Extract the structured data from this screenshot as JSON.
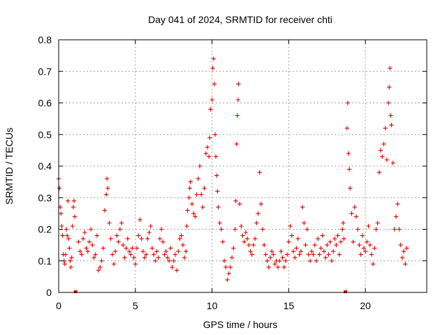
{
  "chart_data": {
    "type": "scatter",
    "title": "Day 041 of 2024, SRMTID for receiver chti",
    "xlabel": "GPS time / hours",
    "ylabel": "SRMTID / TECUs",
    "xlim": [
      0,
      24
    ],
    "ylim": [
      0,
      0.8
    ],
    "xticks": [
      0,
      5,
      10,
      15,
      20
    ],
    "xtick_labels": [
      "0",
      "5",
      "10",
      "15",
      "20"
    ],
    "yticks": [
      0,
      0.1,
      0.2,
      0.3,
      0.4,
      0.5,
      0.6,
      0.7,
      0.8
    ],
    "ytick_labels": [
      "0",
      "0.1",
      "0.2",
      "0.3",
      "0.4",
      "0.5",
      "0.6",
      "0.7",
      "0.8"
    ],
    "grid": true,
    "marker": "plus",
    "color": "#dd0000",
    "gap_markers": [
      1.1,
      18.7
    ],
    "series": [
      {
        "name": "SRMTID",
        "points": [
          [
            0.0,
            0.36
          ],
          [
            0.05,
            0.33
          ],
          [
            0.1,
            0.27
          ],
          [
            0.15,
            0.25
          ],
          [
            0.2,
            0.21
          ],
          [
            0.25,
            0.18
          ],
          [
            0.3,
            0.12
          ],
          [
            0.35,
            0.1
          ],
          [
            0.4,
            0.09
          ],
          [
            0.45,
            0.12
          ],
          [
            0.5,
            0.2
          ],
          [
            0.55,
            0.18
          ],
          [
            0.6,
            0.29
          ],
          [
            0.65,
            0.17
          ],
          [
            0.7,
            0.14
          ],
          [
            0.75,
            0.1
          ],
          [
            0.8,
            0.08
          ],
          [
            0.85,
            0.11
          ],
          [
            0.9,
            0.21
          ],
          [
            0.95,
            0.27
          ],
          [
            1.0,
            0.29
          ],
          [
            1.05,
            0.24
          ],
          [
            1.3,
            0.16
          ],
          [
            1.4,
            0.13
          ],
          [
            1.5,
            0.12
          ],
          [
            1.6,
            0.17
          ],
          [
            1.7,
            0.19
          ],
          [
            1.8,
            0.14
          ],
          [
            1.9,
            0.13
          ],
          [
            2.0,
            0.16
          ],
          [
            2.1,
            0.2
          ],
          [
            2.2,
            0.15
          ],
          [
            2.3,
            0.11
          ],
          [
            2.4,
            0.12
          ],
          [
            2.5,
            0.18
          ],
          [
            2.6,
            0.07
          ],
          [
            2.7,
            0.08
          ],
          [
            2.8,
            0.1
          ],
          [
            2.9,
            0.14
          ],
          [
            3.0,
            0.26
          ],
          [
            3.1,
            0.31
          ],
          [
            3.15,
            0.36
          ],
          [
            3.2,
            0.33
          ],
          [
            3.3,
            0.22
          ],
          [
            3.4,
            0.17
          ],
          [
            3.5,
            0.12
          ],
          [
            3.6,
            0.09
          ],
          [
            3.7,
            0.13
          ],
          [
            3.8,
            0.18
          ],
          [
            3.9,
            0.16
          ],
          [
            4.0,
            0.2
          ],
          [
            4.1,
            0.22
          ],
          [
            4.2,
            0.15
          ],
          [
            4.3,
            0.11
          ],
          [
            4.4,
            0.14
          ],
          [
            4.5,
            0.17
          ],
          [
            4.6,
            0.13
          ],
          [
            4.7,
            0.12
          ],
          [
            4.8,
            0.14
          ],
          [
            4.9,
            0.11
          ],
          [
            5.0,
            0.09
          ],
          [
            5.1,
            0.14
          ],
          [
            5.2,
            0.18
          ],
          [
            5.3,
            0.23
          ],
          [
            5.4,
            0.17
          ],
          [
            5.5,
            0.13
          ],
          [
            5.6,
            0.11
          ],
          [
            5.7,
            0.12
          ],
          [
            5.8,
            0.17
          ],
          [
            5.9,
            0.19
          ],
          [
            6.0,
            0.21
          ],
          [
            6.1,
            0.14
          ],
          [
            6.2,
            0.12
          ],
          [
            6.3,
            0.1
          ],
          [
            6.4,
            0.13
          ],
          [
            6.5,
            0.11
          ],
          [
            6.6,
            0.17
          ],
          [
            6.7,
            0.2
          ],
          [
            6.8,
            0.16
          ],
          [
            6.9,
            0.12
          ],
          [
            7.0,
            0.13
          ],
          [
            7.1,
            0.11
          ],
          [
            7.2,
            0.1
          ],
          [
            7.3,
            0.14
          ],
          [
            7.4,
            0.08
          ],
          [
            7.5,
            0.1
          ],
          [
            7.6,
            0.12
          ],
          [
            7.7,
            0.07
          ],
          [
            7.8,
            0.13
          ],
          [
            7.9,
            0.17
          ],
          [
            8.0,
            0.18
          ],
          [
            8.1,
            0.15
          ],
          [
            8.2,
            0.11
          ],
          [
            8.3,
            0.13
          ],
          [
            8.35,
            0.21
          ],
          [
            8.4,
            0.26
          ],
          [
            8.5,
            0.3
          ],
          [
            8.55,
            0.33
          ],
          [
            8.6,
            0.35
          ],
          [
            8.7,
            0.28
          ],
          [
            8.8,
            0.25
          ],
          [
            8.9,
            0.24
          ],
          [
            9.0,
            0.31
          ],
          [
            9.1,
            0.36
          ],
          [
            9.2,
            0.4
          ],
          [
            9.3,
            0.31
          ],
          [
            9.4,
            0.27
          ],
          [
            9.5,
            0.33
          ],
          [
            9.6,
            0.44
          ],
          [
            9.7,
            0.46
          ],
          [
            9.8,
            0.43
          ],
          [
            9.85,
            0.49
          ],
          [
            9.9,
            0.58
          ],
          [
            10.0,
            0.61
          ],
          [
            10.05,
            0.71
          ],
          [
            10.1,
            0.74
          ],
          [
            10.15,
            0.66
          ],
          [
            10.2,
            0.5
          ],
          [
            10.25,
            0.43
          ],
          [
            10.3,
            0.37
          ],
          [
            10.35,
            0.32
          ],
          [
            10.4,
            0.27
          ],
          [
            10.5,
            0.22
          ],
          [
            10.6,
            0.2
          ],
          [
            10.7,
            0.16
          ],
          [
            10.8,
            0.1
          ],
          [
            10.9,
            0.08
          ],
          [
            11.0,
            0.04
          ],
          [
            11.1,
            0.06
          ],
          [
            11.2,
            0.08
          ],
          [
            11.3,
            0.11
          ],
          [
            11.4,
            0.14
          ],
          [
            11.5,
            0.2
          ],
          [
            11.55,
            0.29
          ],
          [
            11.6,
            0.47
          ],
          [
            11.65,
            0.56
          ],
          [
            11.7,
            0.61
          ],
          [
            11.72,
            0.66
          ],
          [
            11.8,
            0.28
          ],
          [
            11.9,
            0.21
          ],
          [
            12.0,
            0.18
          ],
          [
            12.1,
            0.16
          ],
          [
            12.2,
            0.19
          ],
          [
            12.3,
            0.17
          ],
          [
            12.4,
            0.15
          ],
          [
            12.5,
            0.13
          ],
          [
            12.6,
            0.12
          ],
          [
            12.7,
            0.15
          ],
          [
            12.8,
            0.17
          ],
          [
            12.9,
            0.22
          ],
          [
            13.0,
            0.25
          ],
          [
            13.1,
            0.38
          ],
          [
            13.2,
            0.28
          ],
          [
            13.3,
            0.2
          ],
          [
            13.4,
            0.15
          ],
          [
            13.5,
            0.12
          ],
          [
            13.6,
            0.1
          ],
          [
            13.7,
            0.08
          ],
          [
            13.8,
            0.11
          ],
          [
            13.9,
            0.13
          ],
          [
            14.0,
            0.12
          ],
          [
            14.1,
            0.09
          ],
          [
            14.2,
            0.1
          ],
          [
            14.3,
            0.08
          ],
          [
            14.4,
            0.1
          ],
          [
            14.5,
            0.13
          ],
          [
            14.6,
            0.11
          ],
          [
            14.7,
            0.08
          ],
          [
            14.8,
            0.1
          ],
          [
            14.9,
            0.12
          ],
          [
            15.0,
            0.16
          ],
          [
            15.1,
            0.21
          ],
          [
            15.2,
            0.18
          ],
          [
            15.3,
            0.13
          ],
          [
            15.4,
            0.11
          ],
          [
            15.5,
            0.14
          ],
          [
            15.6,
            0.17
          ],
          [
            15.7,
            0.12
          ],
          [
            15.8,
            0.13
          ],
          [
            15.9,
            0.27
          ],
          [
            16.0,
            0.22
          ],
          [
            16.1,
            0.15
          ],
          [
            16.2,
            0.2
          ],
          [
            16.3,
            0.12
          ],
          [
            16.4,
            0.1
          ],
          [
            16.5,
            0.13
          ],
          [
            16.6,
            0.12
          ],
          [
            16.7,
            0.15
          ],
          [
            16.8,
            0.1
          ],
          [
            16.9,
            0.17
          ],
          [
            17.0,
            0.12
          ],
          [
            17.1,
            0.14
          ],
          [
            17.2,
            0.18
          ],
          [
            17.3,
            0.13
          ],
          [
            17.4,
            0.11
          ],
          [
            17.5,
            0.15
          ],
          [
            17.6,
            0.12
          ],
          [
            17.7,
            0.16
          ],
          [
            17.8,
            0.1
          ],
          [
            17.9,
            0.13
          ],
          [
            18.0,
            0.17
          ],
          [
            18.1,
            0.15
          ],
          [
            18.2,
            0.18
          ],
          [
            18.3,
            0.12
          ],
          [
            18.4,
            0.16
          ],
          [
            18.5,
            0.2
          ],
          [
            18.55,
            0.22
          ],
          [
            18.6,
            0.17
          ],
          [
            18.8,
            0.52
          ],
          [
            18.85,
            0.6
          ],
          [
            18.9,
            0.44
          ],
          [
            18.95,
            0.39
          ],
          [
            19.0,
            0.33
          ],
          [
            19.1,
            0.25
          ],
          [
            19.2,
            0.16
          ],
          [
            19.3,
            0.27
          ],
          [
            19.4,
            0.24
          ],
          [
            19.5,
            0.2
          ],
          [
            19.6,
            0.15
          ],
          [
            19.7,
            0.12
          ],
          [
            19.8,
            0.18
          ],
          [
            19.9,
            0.14
          ],
          [
            20.0,
            0.13
          ],
          [
            20.1,
            0.16
          ],
          [
            20.2,
            0.21
          ],
          [
            20.3,
            0.15
          ],
          [
            20.4,
            0.12
          ],
          [
            20.5,
            0.09
          ],
          [
            20.6,
            0.14
          ],
          [
            20.7,
            0.2
          ],
          [
            20.8,
            0.22
          ],
          [
            20.9,
            0.38
          ],
          [
            21.0,
            0.45
          ],
          [
            21.1,
            0.43
          ],
          [
            21.2,
            0.47
          ],
          [
            21.3,
            0.52
          ],
          [
            21.4,
            0.42
          ],
          [
            21.5,
            0.6
          ],
          [
            21.55,
            0.65
          ],
          [
            21.6,
            0.71
          ],
          [
            21.65,
            0.56
          ],
          [
            21.7,
            0.53
          ],
          [
            21.8,
            0.41
          ],
          [
            21.9,
            0.2
          ],
          [
            22.0,
            0.24
          ],
          [
            22.1,
            0.28
          ],
          [
            22.2,
            0.2
          ],
          [
            22.3,
            0.15
          ],
          [
            22.4,
            0.11
          ],
          [
            22.5,
            0.13
          ],
          [
            22.6,
            0.09
          ],
          [
            22.7,
            0.14
          ]
        ]
      }
    ]
  }
}
